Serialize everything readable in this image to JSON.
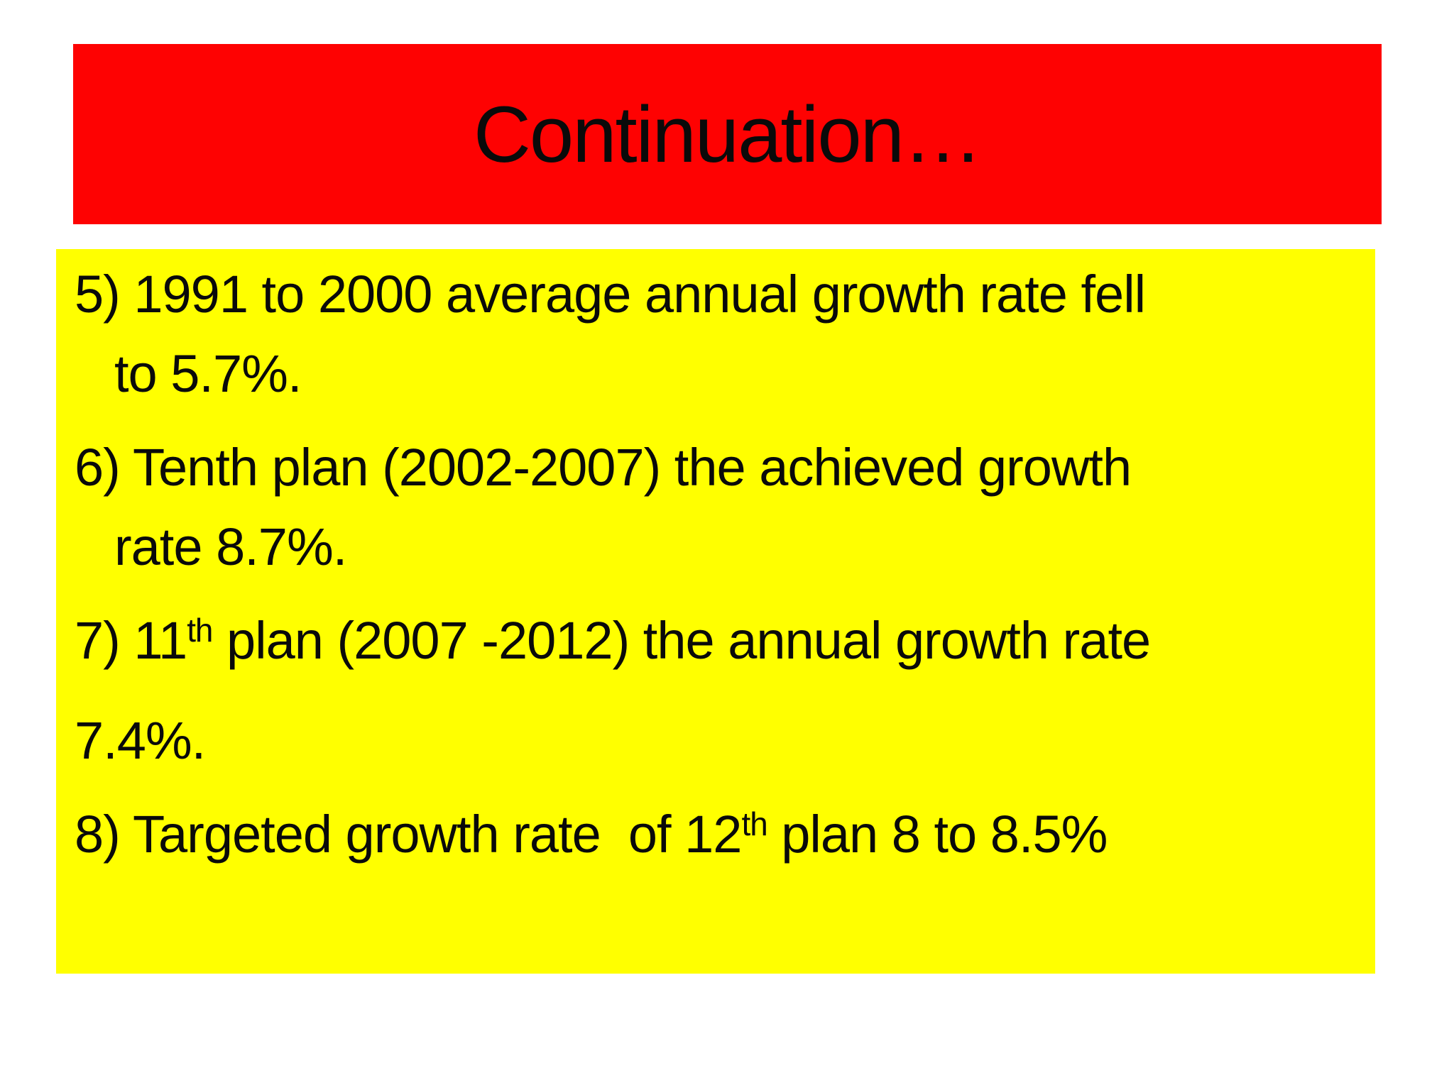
{
  "slide": {
    "title": "Continuation…",
    "colors": {
      "banner_bg": "#FE0202",
      "body_bg": "#FFFF00",
      "text": "#0A0A0A",
      "page_bg": "#FFFFFF"
    },
    "body": {
      "lines": [
        {
          "indent": false,
          "gap_before": false,
          "segments": [
            {
              "text": "5) 1991 to 2000 average annual growth rate fell"
            }
          ]
        },
        {
          "indent": true,
          "gap_before": false,
          "segments": [
            {
              "text": "to 5.7%."
            }
          ]
        },
        {
          "indent": false,
          "gap_before": true,
          "segments": [
            {
              "text": "6) Tenth plan (2002-2007) the achieved growth"
            }
          ]
        },
        {
          "indent": true,
          "gap_before": false,
          "segments": [
            {
              "text": "rate 8.7%."
            }
          ]
        },
        {
          "indent": false,
          "gap_before": true,
          "segments": [
            {
              "text": "7) 11"
            },
            {
              "text": "th",
              "superscript": true
            },
            {
              "text": " plan (2007 -2012) the annual growth rate"
            }
          ]
        },
        {
          "indent": false,
          "gap_before": true,
          "segments": [
            {
              "text": "7.4%."
            }
          ]
        },
        {
          "indent": false,
          "gap_before": true,
          "segments": [
            {
              "text": "8) Targeted growth rate  of 12"
            },
            {
              "text": "th",
              "superscript": true
            },
            {
              "text": " plan 8 to 8.5%"
            }
          ]
        }
      ]
    }
  }
}
